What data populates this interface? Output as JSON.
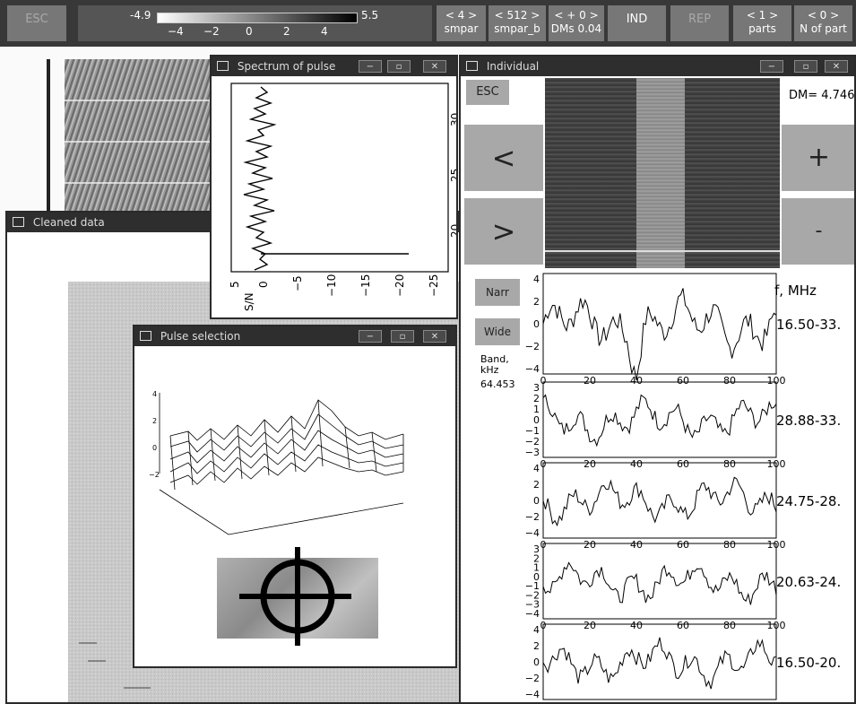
{
  "toolbar": {
    "esc": "ESC",
    "colorbar": {
      "min_label": "-4.9",
      "max_label": "5.5",
      "ticks": [
        "−4",
        "−2",
        "0",
        "2",
        "4"
      ]
    },
    "smpar": {
      "value": "< 4 >",
      "label": "smpar"
    },
    "smpar_b": {
      "value": "< 512 >",
      "label": "smpar_b"
    },
    "dms": {
      "value": "< + 0 >",
      "label": "DMs 0.04"
    },
    "ind": "IND",
    "rep": "REP",
    "parts": {
      "value": "< 1 >",
      "label": "parts"
    },
    "nparts": {
      "value": "< 0 >",
      "label": "N of part"
    }
  },
  "spectrum_window": {
    "title": "Spectrum of pulse",
    "y_ticks": [
      "5",
      "0",
      "−5",
      "−10",
      "−15",
      "−20",
      "−25"
    ],
    "y_label": "S/N",
    "x_ticks": [
      "20",
      "25",
      "30"
    ]
  },
  "cleaned_window": {
    "title": "Cleaned data"
  },
  "pulse_window": {
    "title": "Pulse selection",
    "z_ticks": [
      "4",
      "2",
      "0",
      "−2"
    ]
  },
  "individual_window": {
    "title": "Individual",
    "esc": "ESC",
    "dm_label": "DM= 4.746",
    "prev": "<",
    "next": ">",
    "plus": "+",
    "minus": "-",
    "narr": "Narr",
    "wide": "Wide",
    "band_label": "Band,\nkHz",
    "band_value": "64.453",
    "freq_header": "f, MHz",
    "x_ticks": [
      "0",
      "20",
      "40",
      "60",
      "80",
      "100"
    ],
    "panels": [
      {
        "freq": "16.50-33.",
        "y_ticks": [
          "4",
          "2",
          "0",
          "−2",
          "−4"
        ]
      },
      {
        "freq": "28.88-33.",
        "y_ticks": [
          "3",
          "2",
          "1",
          "0",
          "−1",
          "−2",
          "−3"
        ]
      },
      {
        "freq": "24.75-28.",
        "y_ticks": [
          "4",
          "2",
          "0",
          "−2",
          "−4"
        ]
      },
      {
        "freq": "20.63-24.",
        "y_ticks": [
          "3",
          "2",
          "1",
          "0",
          "−1",
          "−2",
          "−3",
          "−4"
        ]
      },
      {
        "freq": "16.50-20.",
        "y_ticks": [
          "4",
          "2",
          "0",
          "−2",
          "−4"
        ]
      }
    ]
  }
}
